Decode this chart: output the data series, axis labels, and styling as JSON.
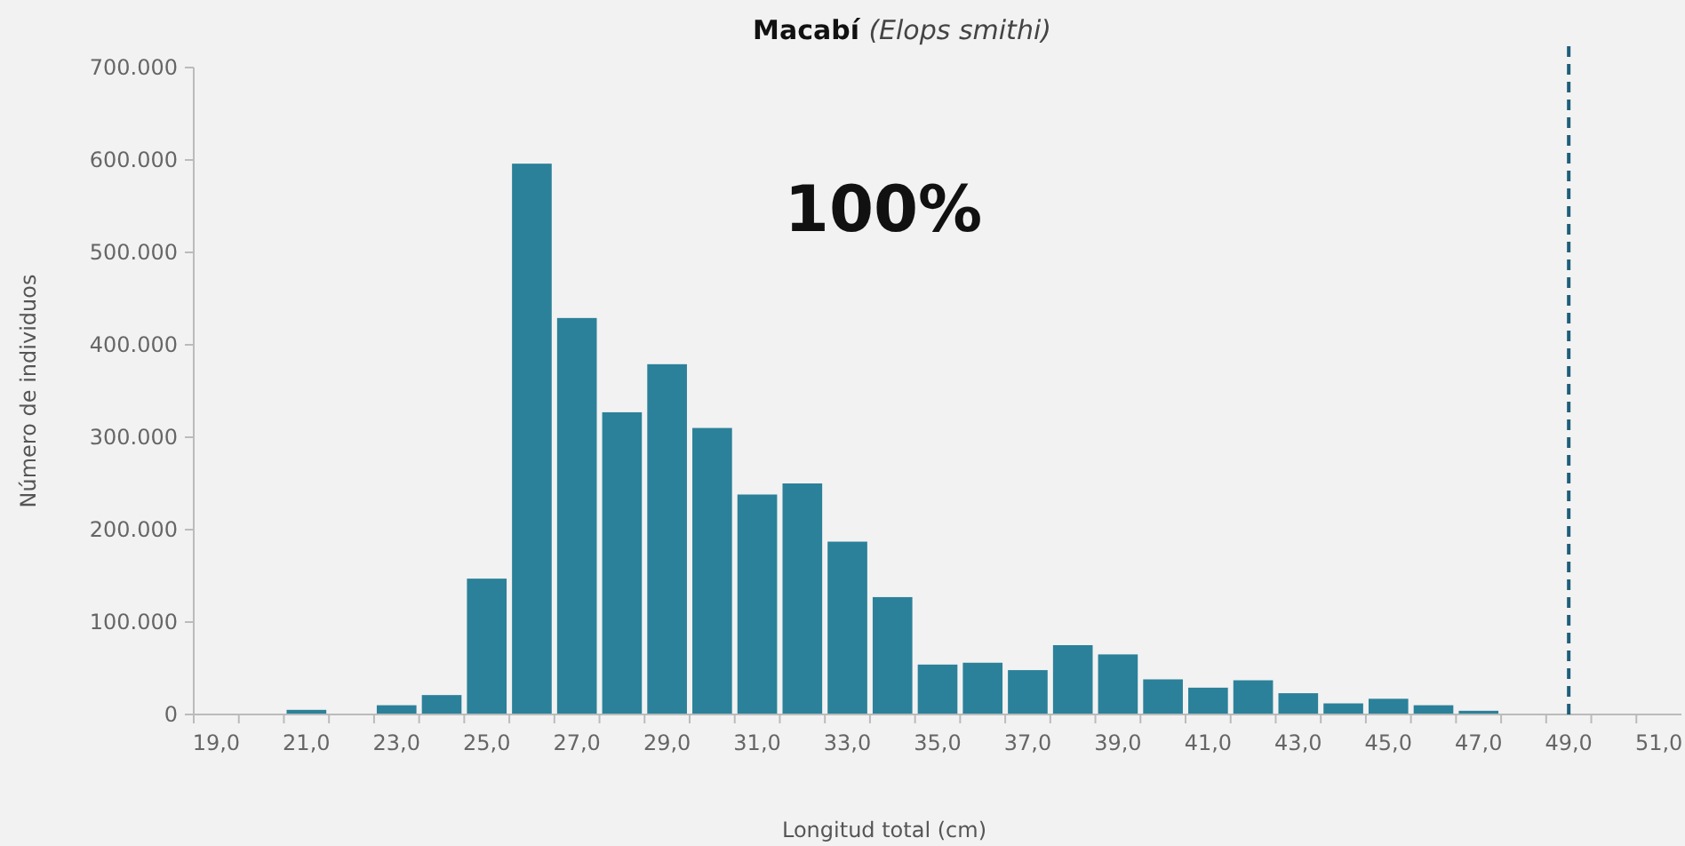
{
  "chart_data": {
    "type": "bar",
    "title": "Macabí (Elops smithi)",
    "xlabel": "Longitud total (cm)",
    "ylabel": "Número de individuos",
    "annotations": [
      "100%"
    ],
    "categories": [
      "19,0",
      null,
      "21,0",
      null,
      "23,0",
      null,
      "25,0",
      null,
      "27,0",
      null,
      "29,0",
      null,
      "31,0",
      null,
      "33,0",
      null,
      "35,0",
      null,
      "37,0",
      null,
      "39,0",
      null,
      "41,0",
      null,
      "43,0",
      null,
      "45,0",
      null,
      "47,0",
      null,
      "49,0",
      null,
      "51,0"
    ],
    "values": [
      0,
      0,
      5000,
      0,
      10000,
      21000,
      147000,
      596000,
      429000,
      327000,
      379000,
      310000,
      238000,
      250000,
      187000,
      127000,
      54000,
      56000,
      48000,
      75000,
      65000,
      38000,
      29000,
      37000,
      23000,
      12000,
      17000,
      10000,
      4000,
      0,
      0,
      0,
      0
    ],
    "color": "#2b8199",
    "ylim": [
      0,
      700000
    ],
    "yticks": [
      {
        "value": 0,
        "label": "0"
      },
      {
        "value": 100000,
        "label": "100.000"
      },
      {
        "value": 200000,
        "label": "200.000"
      },
      {
        "value": 300000,
        "label": "300.000"
      },
      {
        "value": 400000,
        "label": "400.000"
      },
      {
        "value": 500000,
        "label": "500.000"
      },
      {
        "value": 600000,
        "label": "600.000"
      },
      {
        "value": 700000,
        "label": "700.000"
      }
    ],
    "ref_lines": [
      {
        "axis": "x",
        "value": "49,0",
        "color": "#1f5f7a",
        "line_style": "dashed"
      }
    ]
  }
}
